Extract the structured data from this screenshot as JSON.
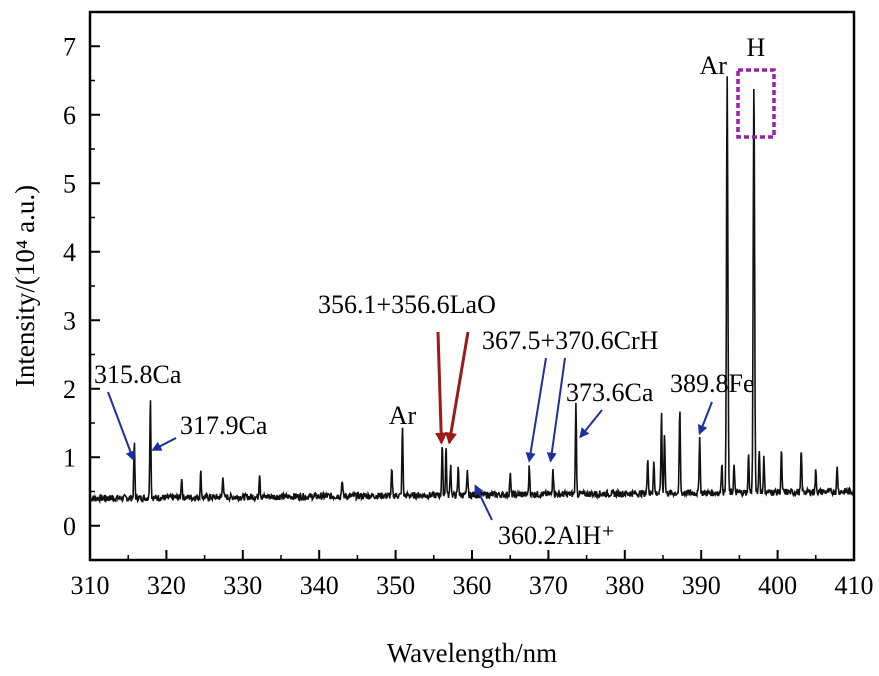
{
  "chart_data": {
    "type": "line",
    "xlabel": "Wavelength/nm",
    "ylabel": "Intensity/(10⁴ a.u.)",
    "xlim": [
      310,
      410
    ],
    "ylim": [
      -0.5,
      7.5
    ],
    "x_ticks": [
      310,
      320,
      330,
      340,
      350,
      360,
      370,
      380,
      390,
      400,
      410
    ],
    "y_ticks": [
      0,
      1,
      2,
      3,
      4,
      5,
      6,
      7
    ],
    "grid": false,
    "baseline": 0.45,
    "series": [
      {
        "peaks": [
          {
            "x": 315.8,
            "y": 1.25
          },
          {
            "x": 317.9,
            "y": 1.92
          },
          {
            "x": 322.0,
            "y": 0.75
          },
          {
            "x": 324.5,
            "y": 0.82
          },
          {
            "x": 327.4,
            "y": 0.78
          },
          {
            "x": 332.2,
            "y": 0.8
          },
          {
            "x": 343.0,
            "y": 0.7
          },
          {
            "x": 349.5,
            "y": 0.82
          },
          {
            "x": 350.9,
            "y": 1.45
          },
          {
            "x": 356.1,
            "y": 1.18
          },
          {
            "x": 356.6,
            "y": 1.15
          },
          {
            "x": 357.2,
            "y": 0.9
          },
          {
            "x": 358.2,
            "y": 0.85
          },
          {
            "x": 359.4,
            "y": 0.8
          },
          {
            "x": 365.0,
            "y": 0.75
          },
          {
            "x": 367.5,
            "y": 0.85
          },
          {
            "x": 370.6,
            "y": 0.85
          },
          {
            "x": 373.6,
            "y": 1.75
          },
          {
            "x": 383.0,
            "y": 1.0
          },
          {
            "x": 383.8,
            "y": 0.95
          },
          {
            "x": 384.8,
            "y": 1.62
          },
          {
            "x": 385.2,
            "y": 1.35
          },
          {
            "x": 387.2,
            "y": 1.68
          },
          {
            "x": 389.8,
            "y": 1.3
          },
          {
            "x": 392.7,
            "y": 0.9
          },
          {
            "x": 393.4,
            "y": 6.5
          },
          {
            "x": 394.3,
            "y": 0.85
          },
          {
            "x": 396.2,
            "y": 1.0
          },
          {
            "x": 396.9,
            "y": 6.48
          },
          {
            "x": 397.6,
            "y": 1.1
          },
          {
            "x": 398.2,
            "y": 0.95
          },
          {
            "x": 400.5,
            "y": 1.05
          },
          {
            "x": 403.1,
            "y": 1.05
          },
          {
            "x": 405.0,
            "y": 0.75
          },
          {
            "x": 407.8,
            "y": 0.8
          }
        ]
      }
    ],
    "annotations": [
      {
        "text": "315.8Ca",
        "arrow_to": [
          315.8,
          1.0
        ],
        "arrow_color": "#1f2f9f"
      },
      {
        "text": "317.9Ca",
        "arrow_to": [
          318.0,
          1.05
        ],
        "arrow_color": "#1f2f9f"
      },
      {
        "text": "Ar",
        "near_x": 350.9
      },
      {
        "text": "356.1+356.6LaO",
        "arrow_to": [
          [
            356.0,
            1.3
          ],
          [
            356.9,
            1.3
          ]
        ],
        "arrow_color": "#9b1b1b"
      },
      {
        "text": "367.5+370.6CrH",
        "arrow_to": [
          [
            367.5,
            0.95
          ],
          [
            370.3,
            0.95
          ]
        ],
        "arrow_color": "#1f2f9f"
      },
      {
        "text": "373.6Ca",
        "arrow_to": [
          374.2,
          1.3
        ],
        "arrow_color": "#1f2f9f"
      },
      {
        "text": "389.8Fe",
        "arrow_to": [
          389.8,
          1.35
        ],
        "arrow_color": "#1f2f9f"
      },
      {
        "text": "360.2AlH⁺",
        "arrow_to": [
          360.2,
          0.55
        ],
        "arrow_color": "#1f2f9f"
      },
      {
        "text": "Ar",
        "near_x": 393.4
      },
      {
        "text": "H",
        "near_x": 396.9,
        "box_color": "#9b1fa8"
      }
    ]
  }
}
